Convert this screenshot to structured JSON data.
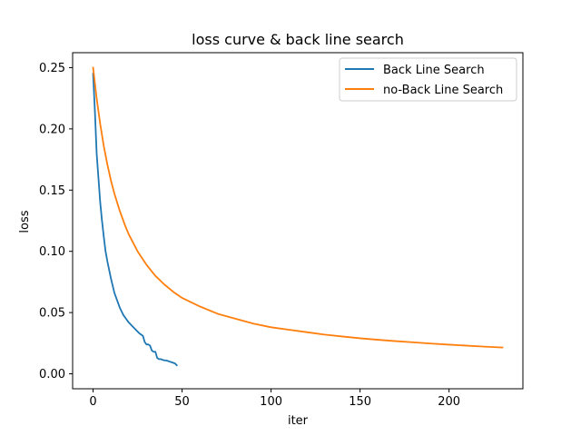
{
  "chart_data": {
    "type": "line",
    "title": "loss curve & back line search",
    "xlabel": "iter",
    "ylabel": "loss",
    "xlim": [
      -11.5,
      241.5
    ],
    "ylim": [
      -0.0122,
      0.2622
    ],
    "xticks": [
      0,
      50,
      100,
      150,
      200
    ],
    "yticks": [
      0.0,
      0.05,
      0.1,
      0.15,
      0.2,
      0.25
    ],
    "xtick_labels": [
      "0",
      "50",
      "100",
      "150",
      "200"
    ],
    "ytick_labels": [
      "0.00",
      "0.05",
      "0.10",
      "0.15",
      "0.20",
      "0.25"
    ],
    "grid": false,
    "legend_position": "upper right",
    "series": [
      {
        "name": "Back Line Search",
        "color": "#1f77b4",
        "x": [
          0,
          1,
          2,
          3,
          4,
          5,
          6,
          7,
          8,
          9,
          10,
          11,
          12,
          13,
          14,
          15,
          16,
          17,
          18,
          19,
          20,
          22,
          24,
          26,
          28,
          29,
          30,
          31,
          32,
          33,
          34,
          35,
          36,
          37,
          38,
          39,
          40,
          41,
          42,
          43,
          44,
          45,
          46,
          47
        ],
        "y": [
          0.245,
          0.215,
          0.18,
          0.16,
          0.14,
          0.125,
          0.112,
          0.1,
          0.092,
          0.085,
          0.078,
          0.072,
          0.066,
          0.062,
          0.058,
          0.054,
          0.051,
          0.048,
          0.046,
          0.044,
          0.042,
          0.039,
          0.036,
          0.033,
          0.031,
          0.026,
          0.024,
          0.024,
          0.023,
          0.019,
          0.018,
          0.018,
          0.013,
          0.012,
          0.012,
          0.0115,
          0.011,
          0.011,
          0.0105,
          0.01,
          0.0095,
          0.009,
          0.0085,
          0.007
        ]
      },
      {
        "name": "no-Back Line Search",
        "color": "#ff7f0e",
        "x": [
          0,
          2,
          4,
          6,
          8,
          10,
          12,
          15,
          18,
          20,
          25,
          30,
          35,
          40,
          45,
          50,
          60,
          70,
          80,
          90,
          100,
          110,
          120,
          130,
          140,
          150,
          160,
          170,
          180,
          190,
          200,
          210,
          220,
          230
        ],
        "y": [
          0.25,
          0.225,
          0.204,
          0.186,
          0.171,
          0.158,
          0.147,
          0.133,
          0.121,
          0.114,
          0.1,
          0.089,
          0.08,
          0.073,
          0.067,
          0.062,
          0.055,
          0.049,
          0.045,
          0.041,
          0.038,
          0.036,
          0.034,
          0.032,
          0.0305,
          0.029,
          0.0278,
          0.0267,
          0.0257,
          0.0247,
          0.0238,
          0.023,
          0.0222,
          0.0215
        ]
      }
    ]
  }
}
